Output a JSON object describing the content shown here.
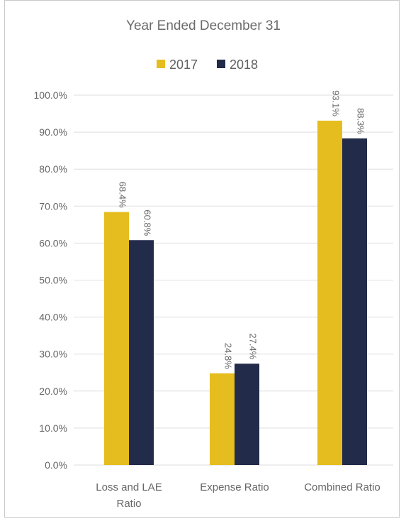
{
  "chart_data": {
    "type": "bar",
    "title": "Year Ended December 31",
    "categories": [
      [
        "Loss and LAE",
        "Ratio"
      ],
      [
        "Expense Ratio"
      ],
      [
        "Combined Ratio"
      ]
    ],
    "series": [
      {
        "name": "2017",
        "color": "#e6bd1e",
        "values": [
          68.4,
          24.8,
          93.1
        ],
        "labels": [
          "68.4%",
          "24.8%",
          "93.1%"
        ]
      },
      {
        "name": "2018",
        "color": "#232b4a",
        "values": [
          60.8,
          27.4,
          88.3
        ],
        "labels": [
          "60.8%",
          "27.4%",
          "88.3%"
        ]
      }
    ],
    "ylim": [
      0,
      100
    ],
    "yticks": [
      "0.0%",
      "10.0%",
      "20.0%",
      "30.0%",
      "40.0%",
      "50.0%",
      "60.0%",
      "70.0%",
      "80.0%",
      "90.0%",
      "100.0%"
    ],
    "grid": true,
    "legend_position": "top-center"
  }
}
